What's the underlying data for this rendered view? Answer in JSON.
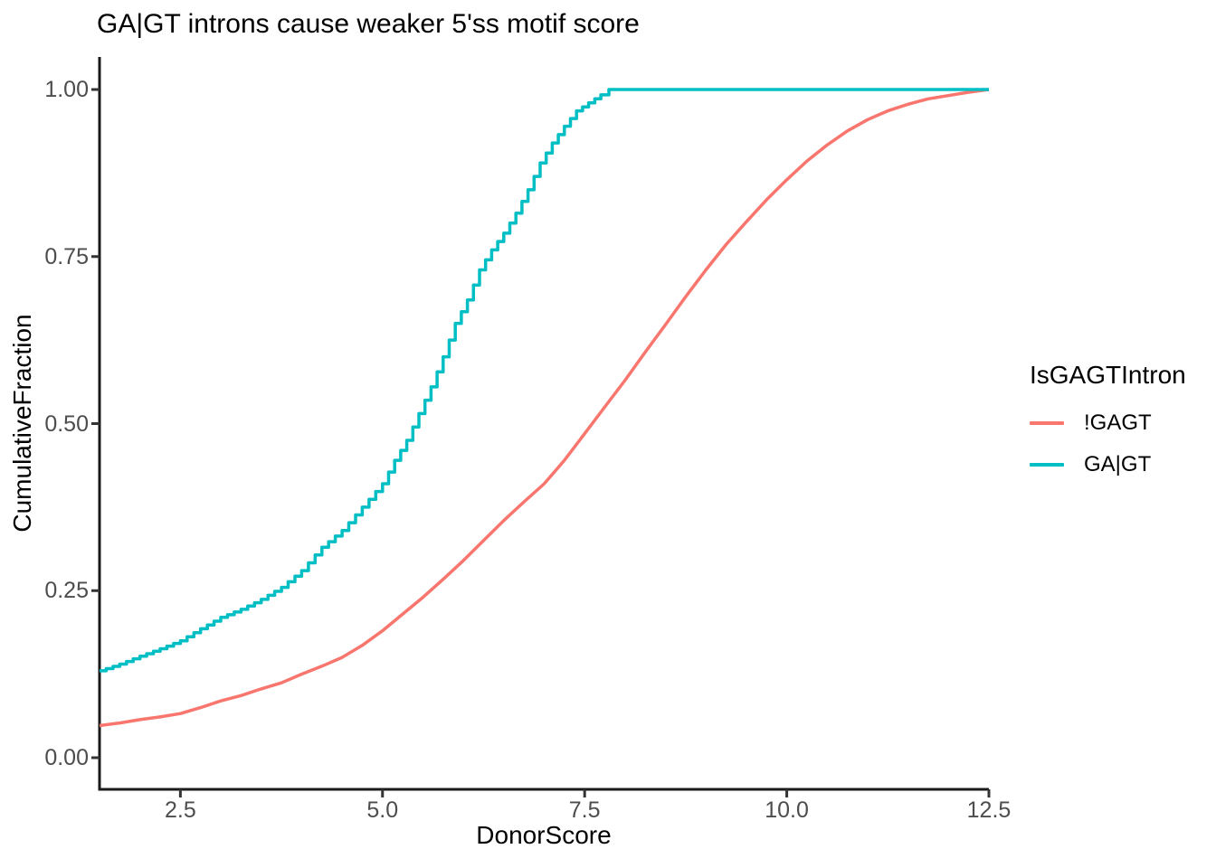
{
  "chart_data": {
    "type": "line",
    "subtype": "ecdf",
    "title": "GA|GT introns cause weaker 5'ss motif score",
    "xlabel": "DonorScore",
    "ylabel": "CumulativeFraction",
    "xlim": [
      1.5,
      12.5
    ],
    "ylim": [
      0,
      1
    ],
    "grid": false,
    "x_ticks": {
      "values": [
        2.5,
        5.0,
        7.5,
        10.0,
        12.5
      ],
      "labels": [
        "2.5",
        "5.0",
        "7.5",
        "10.0",
        "12.5"
      ]
    },
    "y_ticks": {
      "values": [
        0,
        0.25,
        0.5,
        0.75,
        1.0
      ],
      "labels": [
        "0.00",
        "0.25",
        "0.50",
        "0.75",
        "1.00"
      ]
    },
    "legend": {
      "title": "IsGAGTIntron",
      "position": "right",
      "entries": [
        {
          "label": "!GAGT",
          "color": "#F8766D"
        },
        {
          "label": "GA|GT",
          "color": "#00BFC4"
        }
      ]
    },
    "series": [
      {
        "name": "!GAGT",
        "color": "#F8766D",
        "style": "smooth",
        "points": [
          [
            1.5,
            0.048
          ],
          [
            1.75,
            0.052
          ],
          [
            2.0,
            0.057
          ],
          [
            2.25,
            0.061
          ],
          [
            2.5,
            0.066
          ],
          [
            2.75,
            0.075
          ],
          [
            3.0,
            0.085
          ],
          [
            3.25,
            0.093
          ],
          [
            3.5,
            0.103
          ],
          [
            3.75,
            0.112
          ],
          [
            4.0,
            0.125
          ],
          [
            4.25,
            0.137
          ],
          [
            4.5,
            0.15
          ],
          [
            4.75,
            0.168
          ],
          [
            5.0,
            0.19
          ],
          [
            5.25,
            0.215
          ],
          [
            5.5,
            0.24
          ],
          [
            5.75,
            0.267
          ],
          [
            6.0,
            0.295
          ],
          [
            6.25,
            0.325
          ],
          [
            6.5,
            0.355
          ],
          [
            6.75,
            0.383
          ],
          [
            7.0,
            0.41
          ],
          [
            7.25,
            0.445
          ],
          [
            7.5,
            0.485
          ],
          [
            7.75,
            0.525
          ],
          [
            8.0,
            0.565
          ],
          [
            8.25,
            0.607
          ],
          [
            8.5,
            0.648
          ],
          [
            8.75,
            0.69
          ],
          [
            9.0,
            0.73
          ],
          [
            9.25,
            0.768
          ],
          [
            9.5,
            0.802
          ],
          [
            9.75,
            0.835
          ],
          [
            10.0,
            0.865
          ],
          [
            10.25,
            0.893
          ],
          [
            10.5,
            0.917
          ],
          [
            10.75,
            0.938
          ],
          [
            11.0,
            0.955
          ],
          [
            11.25,
            0.968
          ],
          [
            11.5,
            0.978
          ],
          [
            11.75,
            0.986
          ],
          [
            12.0,
            0.991
          ],
          [
            12.25,
            0.996
          ],
          [
            12.5,
            1.0
          ]
        ]
      },
      {
        "name": "GA|GT",
        "color": "#00BFC4",
        "style": "step",
        "points": [
          [
            1.5,
            0.13
          ],
          [
            1.75,
            0.14
          ],
          [
            2.0,
            0.152
          ],
          [
            2.25,
            0.163
          ],
          [
            2.5,
            0.175
          ],
          [
            2.75,
            0.193
          ],
          [
            3.0,
            0.21
          ],
          [
            3.25,
            0.222
          ],
          [
            3.5,
            0.237
          ],
          [
            3.75,
            0.255
          ],
          [
            4.0,
            0.28
          ],
          [
            4.25,
            0.315
          ],
          [
            4.5,
            0.34
          ],
          [
            4.75,
            0.375
          ],
          [
            5.0,
            0.41
          ],
          [
            5.15,
            0.445
          ],
          [
            5.3,
            0.475
          ],
          [
            5.45,
            0.515
          ],
          [
            5.6,
            0.555
          ],
          [
            5.75,
            0.6
          ],
          [
            5.9,
            0.65
          ],
          [
            6.05,
            0.685
          ],
          [
            6.2,
            0.73
          ],
          [
            6.35,
            0.76
          ],
          [
            6.5,
            0.785
          ],
          [
            6.65,
            0.815
          ],
          [
            6.8,
            0.85
          ],
          [
            6.95,
            0.89
          ],
          [
            7.1,
            0.92
          ],
          [
            7.25,
            0.945
          ],
          [
            7.4,
            0.968
          ],
          [
            7.55,
            0.98
          ],
          [
            7.7,
            0.992
          ],
          [
            7.8,
            1.0
          ],
          [
            12.5,
            1.0
          ]
        ]
      }
    ]
  },
  "colors": {
    "axis_line": "#1a1a1a",
    "tick_mark": "#333333",
    "tick_text": "#4d4d4d",
    "title_text": "#000000",
    "background": "#ffffff"
  }
}
